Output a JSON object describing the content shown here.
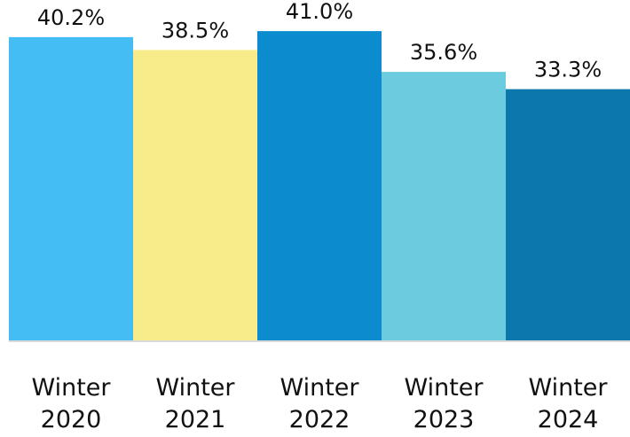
{
  "chart_data": {
    "type": "bar",
    "title": "",
    "xlabel": "",
    "ylabel": "",
    "ylim": [
      0,
      41.6
    ],
    "grid": false,
    "legend": "none",
    "categories": [
      [
        "Winter",
        "2020"
      ],
      [
        "Winter",
        "2021"
      ],
      [
        "Winter",
        "2022"
      ],
      [
        "Winter",
        "2023"
      ],
      [
        "Winter",
        "2024"
      ]
    ],
    "values": [
      40.2,
      38.5,
      41.0,
      35.6,
      33.3
    ],
    "value_labels": [
      "40.2%",
      "38.5%",
      "41.0%",
      "35.6%",
      "33.3%"
    ],
    "colors": [
      "#44BDF5",
      "#F8EB8A",
      "#0C8CCF",
      "#6BCBDF",
      "#0A77AD"
    ],
    "baseline_color": "#D9D9D9"
  }
}
